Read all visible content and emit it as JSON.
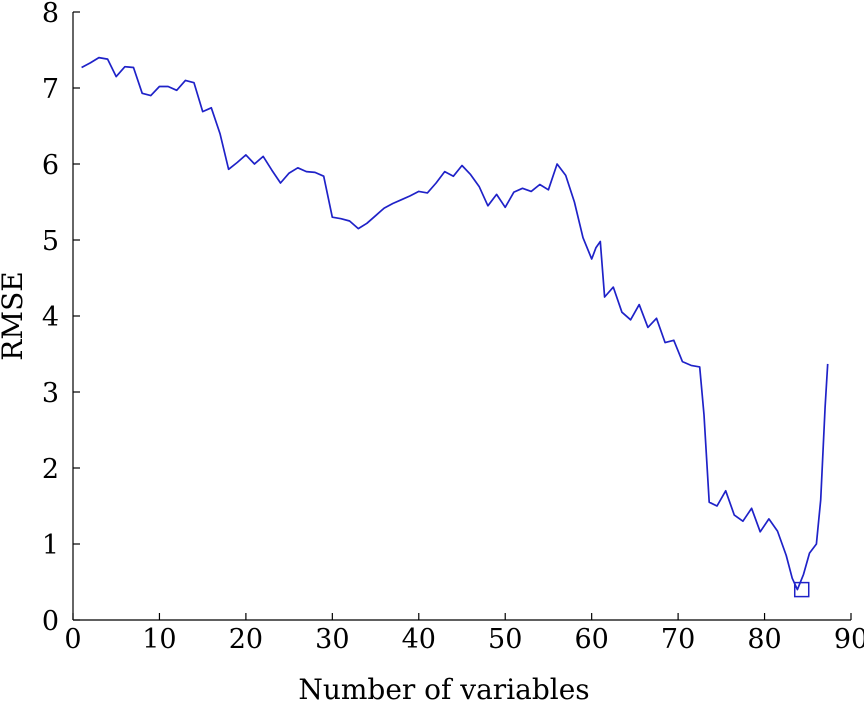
{
  "chart_data": {
    "type": "line",
    "title": "",
    "xlabel": "Number of variables",
    "ylabel": "RMSE",
    "xlim": [
      0,
      90
    ],
    "ylim": [
      0,
      8
    ],
    "xticks": [
      "0",
      "10",
      "20",
      "30",
      "40",
      "50",
      "60",
      "70",
      "80",
      "90"
    ],
    "yticks": [
      "0",
      "1",
      "2",
      "3",
      "4",
      "5",
      "6",
      "7",
      "8"
    ],
    "grid": false,
    "legend": "none",
    "series": [
      {
        "color": "#1f22c8",
        "points": [
          [
            1,
            7.27
          ],
          [
            2,
            7.33
          ],
          [
            3,
            7.4
          ],
          [
            4,
            7.38
          ],
          [
            5,
            7.15
          ],
          [
            6,
            7.28
          ],
          [
            7,
            7.27
          ],
          [
            8,
            6.93
          ],
          [
            9,
            6.9
          ],
          [
            10,
            7.02
          ],
          [
            11,
            7.02
          ],
          [
            12,
            6.97
          ],
          [
            13,
            7.1
          ],
          [
            14,
            7.07
          ],
          [
            15,
            6.69
          ],
          [
            16,
            6.74
          ],
          [
            17,
            6.4
          ],
          [
            18,
            5.93
          ],
          [
            19,
            6.02
          ],
          [
            20,
            6.12
          ],
          [
            21,
            6.0
          ],
          [
            22,
            6.1
          ],
          [
            23,
            5.92
          ],
          [
            24,
            5.75
          ],
          [
            25,
            5.88
          ],
          [
            26,
            5.95
          ],
          [
            27,
            5.9
          ],
          [
            28,
            5.89
          ],
          [
            29,
            5.84
          ],
          [
            30,
            5.3
          ],
          [
            31,
            5.28
          ],
          [
            32,
            5.25
          ],
          [
            33,
            5.15
          ],
          [
            34,
            5.22
          ],
          [
            35,
            5.32
          ],
          [
            36,
            5.42
          ],
          [
            37,
            5.48
          ],
          [
            38,
            5.53
          ],
          [
            39,
            5.58
          ],
          [
            40,
            5.64
          ],
          [
            41,
            5.62
          ],
          [
            42,
            5.75
          ],
          [
            43,
            5.9
          ],
          [
            44,
            5.84
          ],
          [
            45,
            5.98
          ],
          [
            46,
            5.86
          ],
          [
            47,
            5.7
          ],
          [
            48,
            5.45
          ],
          [
            49,
            5.6
          ],
          [
            50,
            5.43
          ],
          [
            51,
            5.63
          ],
          [
            52,
            5.68
          ],
          [
            53,
            5.64
          ],
          [
            54,
            5.73
          ],
          [
            55,
            5.66
          ],
          [
            56,
            6.0
          ],
          [
            57,
            5.85
          ],
          [
            58,
            5.5
          ],
          [
            59,
            5.03
          ],
          [
            60,
            4.75
          ],
          [
            60.5,
            4.9
          ],
          [
            61,
            4.98
          ],
          [
            61.5,
            4.25
          ],
          [
            62.5,
            4.38
          ],
          [
            63.5,
            4.05
          ],
          [
            64.5,
            3.95
          ],
          [
            65.5,
            4.15
          ],
          [
            66.5,
            3.85
          ],
          [
            67.5,
            3.97
          ],
          [
            68.5,
            3.65
          ],
          [
            69.5,
            3.68
          ],
          [
            70.5,
            3.4
          ],
          [
            71.5,
            3.35
          ],
          [
            72.5,
            3.33
          ],
          [
            73,
            2.7
          ],
          [
            73.6,
            1.55
          ],
          [
            74.5,
            1.5
          ],
          [
            75.5,
            1.7
          ],
          [
            76.5,
            1.38
          ],
          [
            77.5,
            1.3
          ],
          [
            78.5,
            1.47
          ],
          [
            79.5,
            1.16
          ],
          [
            80.5,
            1.33
          ],
          [
            81.5,
            1.17
          ],
          [
            82.5,
            0.85
          ],
          [
            83.2,
            0.55
          ],
          [
            83.8,
            0.4
          ],
          [
            84.5,
            0.6
          ],
          [
            85.2,
            0.88
          ],
          [
            86,
            1.0
          ],
          [
            86.5,
            1.58
          ],
          [
            87,
            2.8
          ],
          [
            87.3,
            3.37
          ]
        ]
      }
    ],
    "marker": {
      "shape": "square",
      "x": 84.3,
      "y": 0.4,
      "color": "#1f22c8"
    }
  }
}
